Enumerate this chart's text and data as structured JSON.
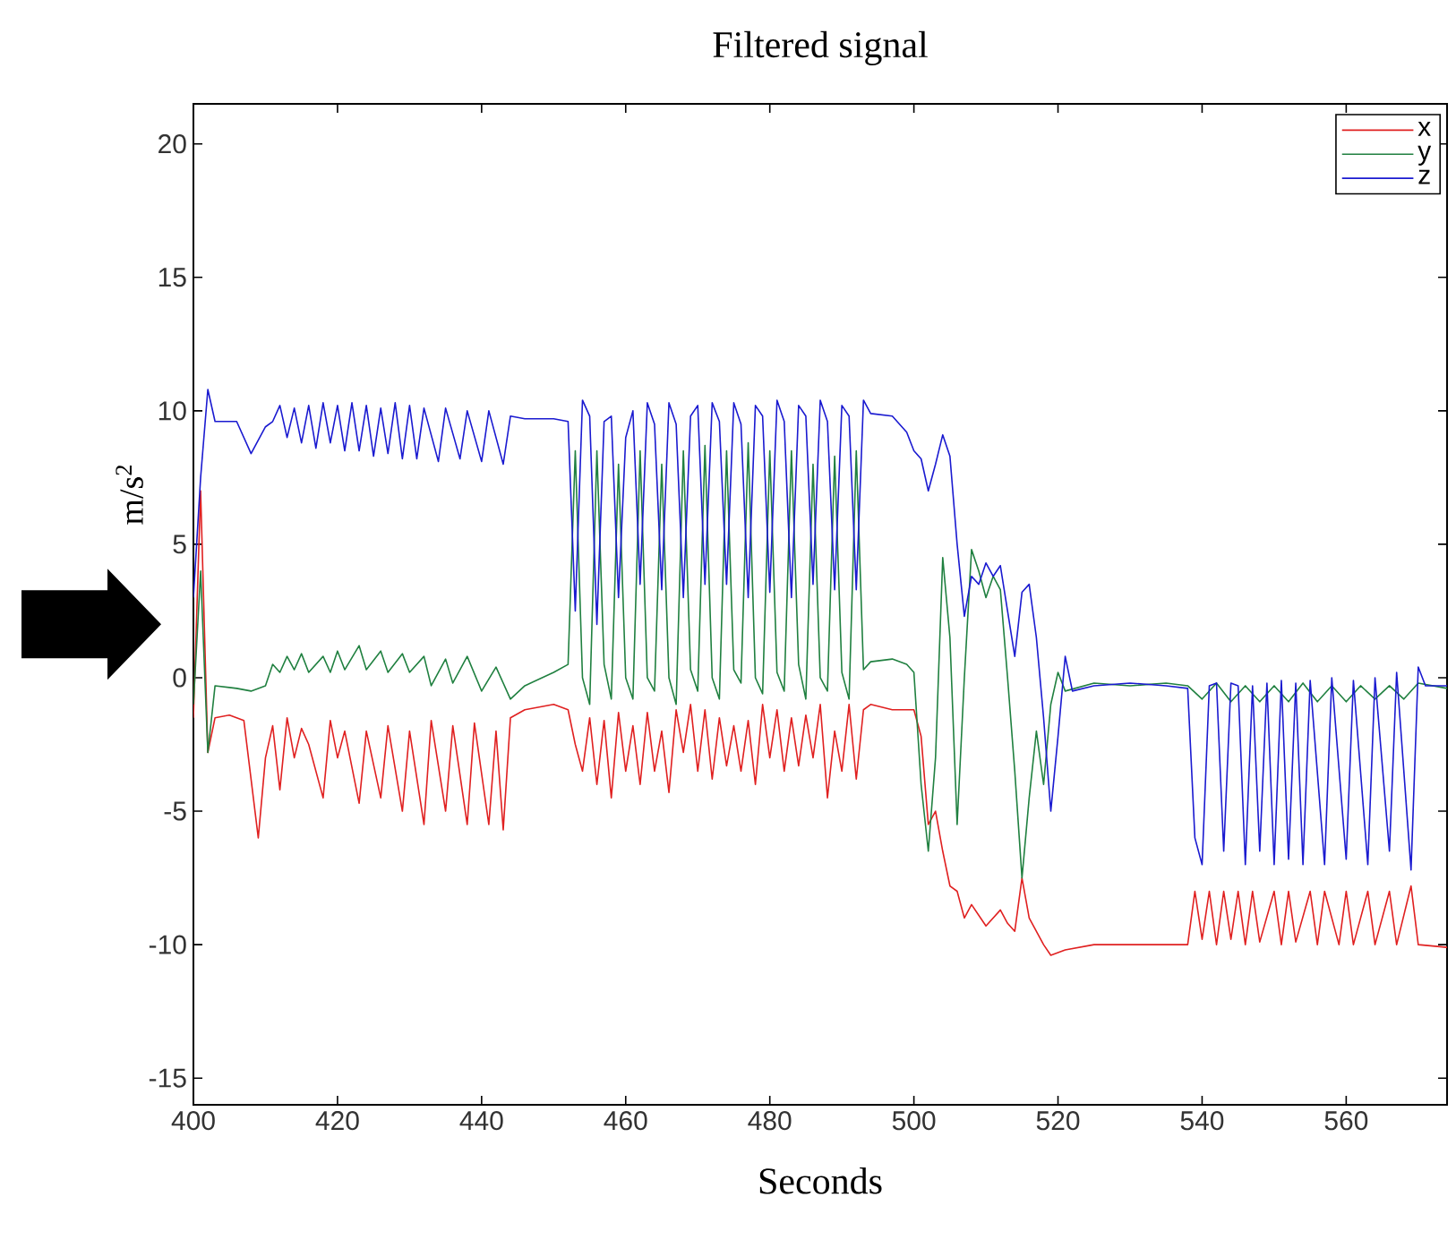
{
  "chart_data": {
    "type": "line",
    "title": "Filtered signal",
    "xlabel": "Seconds",
    "ylabel": "m/s$^{2}$",
    "xlim": [
      400,
      574
    ],
    "ylim": [
      -16,
      21.5
    ],
    "xticks": [
      400,
      420,
      440,
      460,
      480,
      500,
      520,
      540,
      560
    ],
    "yticks": [
      -15,
      -10,
      -5,
      0,
      5,
      10,
      15,
      20
    ],
    "legend": "top right",
    "series": [
      {
        "name": "x",
        "color": "#e02020",
        "x": [
          400,
          401,
          402,
          403,
          405,
          407,
          409,
          410,
          411,
          412,
          413,
          414,
          415,
          416,
          418,
          419,
          420,
          421,
          423,
          424,
          426,
          427,
          429,
          430,
          432,
          433,
          435,
          436,
          438,
          439,
          441,
          442,
          443,
          444,
          446,
          450,
          452,
          453,
          454,
          455,
          456,
          457,
          458,
          459,
          460,
          461,
          462,
          463,
          464,
          465,
          466,
          467,
          468,
          469,
          470,
          471,
          472,
          473,
          474,
          475,
          476,
          477,
          478,
          479,
          480,
          481,
          482,
          483,
          484,
          485,
          486,
          487,
          488,
          489,
          490,
          491,
          492,
          493,
          494,
          497,
          500,
          501,
          502,
          503,
          504,
          505,
          506,
          507,
          508,
          510,
          512,
          513,
          514,
          515,
          516,
          517,
          518,
          519,
          521,
          525,
          530,
          535,
          538,
          539,
          540,
          541,
          542,
          543,
          544,
          545,
          546,
          547,
          548,
          550,
          551,
          552,
          553,
          555,
          556,
          557,
          559,
          560,
          561,
          563,
          564,
          566,
          567,
          569,
          570,
          574
        ],
        "values": [
          -1.5,
          7.0,
          -2.8,
          -1.5,
          -1.4,
          -1.6,
          -6.0,
          -3.0,
          -1.8,
          -4.2,
          -1.5,
          -3.0,
          -1.9,
          -2.5,
          -4.5,
          -1.6,
          -3.0,
          -2.0,
          -4.7,
          -2.0,
          -4.5,
          -1.8,
          -5.0,
          -2.0,
          -5.5,
          -1.6,
          -5.0,
          -1.8,
          -5.5,
          -1.7,
          -5.5,
          -2.0,
          -5.7,
          -1.5,
          -1.2,
          -1.0,
          -1.2,
          -2.5,
          -3.5,
          -1.5,
          -4.0,
          -1.6,
          -4.5,
          -1.3,
          -3.5,
          -1.8,
          -4.0,
          -1.3,
          -3.5,
          -2.0,
          -4.3,
          -1.2,
          -2.8,
          -1.0,
          -3.5,
          -1.2,
          -3.8,
          -1.5,
          -3.3,
          -1.8,
          -3.5,
          -1.6,
          -4.0,
          -1.0,
          -3.0,
          -1.2,
          -3.5,
          -1.5,
          -3.3,
          -1.4,
          -3.0,
          -1.0,
          -4.5,
          -2.0,
          -3.5,
          -1.0,
          -3.8,
          -1.2,
          -1.0,
          -1.2,
          -1.2,
          -2.2,
          -5.5,
          -5.0,
          -6.5,
          -7.8,
          -8.0,
          -9.0,
          -8.5,
          -9.3,
          -8.7,
          -9.2,
          -9.5,
          -7.5,
          -9.0,
          -9.5,
          -10.0,
          -10.4,
          -10.2,
          -10.0,
          -10.0,
          -10.0,
          -10.0,
          -8.0,
          -9.8,
          -8.0,
          -10.0,
          -8.0,
          -9.8,
          -8.0,
          -10.0,
          -8.0,
          -9.9,
          -8.0,
          -10.0,
          -8.0,
          -9.9,
          -8.0,
          -10.0,
          -8.0,
          -10.0,
          -8.0,
          -10.0,
          -8.0,
          -10.0,
          -8.0,
          -10.0,
          -7.8,
          -10.0,
          -10.1
        ]
      },
      {
        "name": "y",
        "color": "#208040",
        "x": [
          400,
          401,
          402,
          403,
          406,
          408,
          410,
          411,
          412,
          413,
          414,
          415,
          416,
          418,
          419,
          420,
          421,
          423,
          424,
          426,
          427,
          429,
          430,
          432,
          433,
          435,
          436,
          438,
          440,
          442,
          444,
          446,
          450,
          452,
          453,
          454,
          455,
          456,
          457,
          458,
          459,
          460,
          461,
          462,
          463,
          464,
          465,
          466,
          467,
          468,
          469,
          470,
          471,
          472,
          473,
          474,
          475,
          476,
          477,
          478,
          479,
          480,
          481,
          482,
          483,
          484,
          485,
          486,
          487,
          488,
          489,
          490,
          491,
          492,
          493,
          494,
          497,
          499,
          500,
          501,
          502,
          503,
          504,
          505,
          506,
          507,
          508,
          509,
          510,
          511,
          512,
          513,
          514,
          515,
          516,
          517,
          518,
          519,
          520,
          521,
          525,
          530,
          535,
          538,
          540,
          542,
          544,
          546,
          548,
          550,
          552,
          554,
          556,
          558,
          560,
          562,
          564,
          566,
          568,
          570,
          574
        ],
        "values": [
          -1.0,
          4.0,
          -2.8,
          -0.3,
          -0.4,
          -0.5,
          -0.3,
          0.5,
          0.2,
          0.8,
          0.3,
          0.9,
          0.2,
          0.8,
          0.2,
          1.0,
          0.3,
          1.2,
          0.3,
          1.0,
          0.2,
          0.9,
          0.2,
          0.8,
          -0.3,
          0.7,
          -0.2,
          0.8,
          -0.5,
          0.4,
          -0.8,
          -0.3,
          0.2,
          0.5,
          8.5,
          0.0,
          -1.0,
          8.5,
          0.5,
          -0.8,
          8.0,
          0.0,
          -0.8,
          8.5,
          0.0,
          -0.5,
          8.0,
          0.0,
          -1.0,
          8.5,
          0.3,
          -0.5,
          8.7,
          0.0,
          -0.8,
          8.5,
          0.3,
          -0.2,
          8.8,
          0.0,
          -0.6,
          8.5,
          0.2,
          -0.5,
          8.5,
          0.5,
          -0.8,
          8.0,
          0.0,
          -0.5,
          8.3,
          0.2,
          -0.8,
          8.5,
          0.3,
          0.6,
          0.7,
          0.5,
          0.2,
          -4.0,
          -6.5,
          -3.0,
          4.5,
          1.5,
          -5.5,
          0.0,
          4.8,
          4.0,
          3.0,
          3.8,
          3.3,
          0.0,
          -3.5,
          -7.5,
          -4.5,
          -2.0,
          -4.0,
          -1.0,
          0.2,
          -0.5,
          -0.2,
          -0.3,
          -0.2,
          -0.3,
          -0.8,
          -0.2,
          -0.9,
          -0.3,
          -0.9,
          -0.3,
          -0.9,
          -0.2,
          -0.9,
          -0.3,
          -0.9,
          -0.3,
          -0.8,
          -0.3,
          -0.8,
          -0.2,
          -0.4
        ]
      },
      {
        "name": "z",
        "color": "#1a1ad0",
        "x": [
          400,
          401,
          402,
          403,
          406,
          408,
          410,
          411,
          412,
          413,
          414,
          415,
          416,
          417,
          418,
          419,
          420,
          421,
          422,
          423,
          424,
          425,
          426,
          427,
          428,
          429,
          430,
          431,
          432,
          434,
          435,
          437,
          438,
          440,
          441,
          443,
          444,
          446,
          450,
          452,
          453,
          454,
          455,
          456,
          457,
          458,
          459,
          460,
          461,
          462,
          463,
          464,
          465,
          466,
          467,
          468,
          469,
          470,
          471,
          472,
          473,
          474,
          475,
          476,
          477,
          478,
          479,
          480,
          481,
          482,
          483,
          484,
          485,
          486,
          487,
          488,
          489,
          490,
          491,
          492,
          493,
          494,
          497,
          499,
          500,
          501,
          502,
          503,
          504,
          505,
          506,
          507,
          508,
          509,
          510,
          511,
          512,
          513,
          514,
          515,
          516,
          517,
          518,
          519,
          520,
          521,
          522,
          525,
          530,
          535,
          538,
          539,
          540,
          541,
          542,
          543,
          544,
          545,
          546,
          547,
          548,
          549,
          550,
          551,
          552,
          553,
          554,
          555,
          557,
          558,
          560,
          561,
          563,
          564,
          566,
          567,
          569,
          570,
          571,
          574
        ],
        "values": [
          3.0,
          7.5,
          10.8,
          9.6,
          9.6,
          8.4,
          9.4,
          9.6,
          10.2,
          9.0,
          10.1,
          8.8,
          10.2,
          8.6,
          10.3,
          8.8,
          10.2,
          8.5,
          10.3,
          8.5,
          10.2,
          8.3,
          10.1,
          8.4,
          10.3,
          8.2,
          10.2,
          8.2,
          10.1,
          8.1,
          10.1,
          8.2,
          10.0,
          8.1,
          10.0,
          8.0,
          9.8,
          9.7,
          9.7,
          9.6,
          2.5,
          10.4,
          9.8,
          2.0,
          9.6,
          9.8,
          3.0,
          9.0,
          10.0,
          3.5,
          10.3,
          9.5,
          3.3,
          10.3,
          9.5,
          3.0,
          9.8,
          10.2,
          3.5,
          10.3,
          9.6,
          3.5,
          10.3,
          9.5,
          3.0,
          10.2,
          9.8,
          3.2,
          10.4,
          9.6,
          3.0,
          10.2,
          9.8,
          3.5,
          10.4,
          9.6,
          3.3,
          10.2,
          9.8,
          3.3,
          10.4,
          9.9,
          9.8,
          9.2,
          8.5,
          8.2,
          7.0,
          8.0,
          9.1,
          8.3,
          5.0,
          2.3,
          3.8,
          3.5,
          4.3,
          3.8,
          4.2,
          2.5,
          0.8,
          3.2,
          3.5,
          1.5,
          -1.5,
          -5.0,
          -2.2,
          0.8,
          -0.5,
          -0.3,
          -0.2,
          -0.3,
          -0.4,
          -6.0,
          -7.0,
          -0.3,
          -0.2,
          -6.5,
          -0.2,
          -0.3,
          -7.0,
          -0.3,
          -6.5,
          -0.2,
          -7.0,
          -0.1,
          -6.8,
          -0.2,
          -7.0,
          -0.1,
          -7.0,
          0.0,
          -6.8,
          -0.1,
          -7.0,
          0.0,
          -6.5,
          0.2,
          -7.2,
          0.4,
          -0.3,
          -0.3
        ]
      }
    ]
  }
}
